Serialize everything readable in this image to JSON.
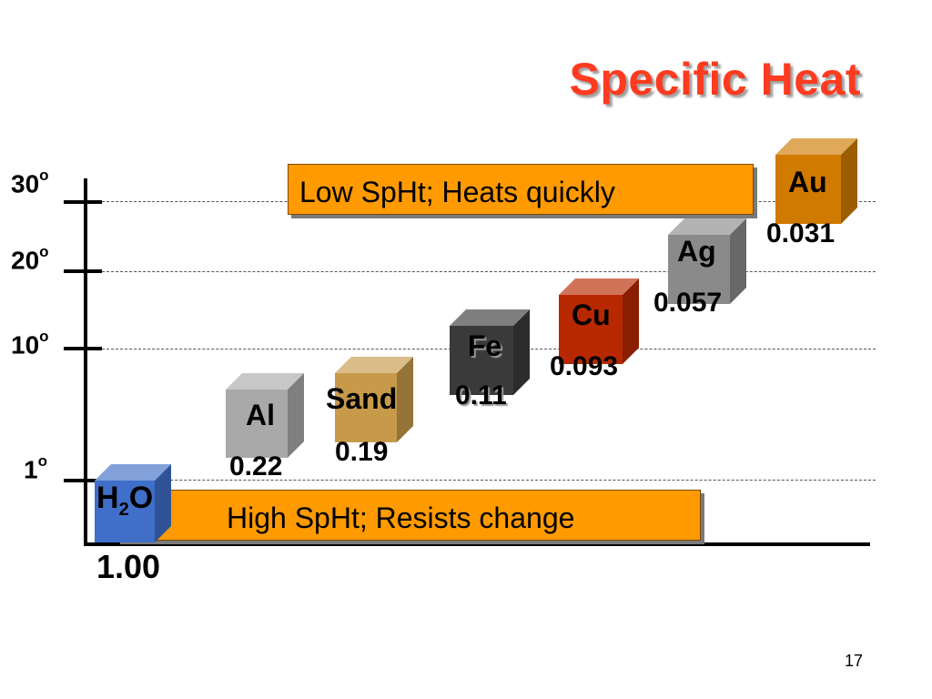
{
  "slide": {
    "title": "Specific Heat",
    "page_number": "17"
  },
  "axis": {
    "temp_labels": [
      {
        "value": "30",
        "unit": "o"
      },
      {
        "value": "20",
        "unit": "o"
      },
      {
        "value": "10",
        "unit": "o"
      },
      {
        "value": "1",
        "unit": "o"
      }
    ]
  },
  "banners": {
    "low": "Low SpHt; Heats quickly",
    "high": "High SpHt; Resists change"
  },
  "materials": [
    {
      "name": "H",
      "subscript": "2",
      "suffix": "O",
      "value": "1.00",
      "color": "#3f6fc8"
    },
    {
      "name": "Al",
      "value": "0.22",
      "color": "#a9a9a9"
    },
    {
      "name": "Sand",
      "value": "0.19",
      "color": "#c79a4a"
    },
    {
      "name": "Fe",
      "value": "0.11",
      "color": "#3a3a3a"
    },
    {
      "name": "Cu",
      "value": "0.093",
      "color": "#b82800"
    },
    {
      "name": "Ag",
      "value": "0.057",
      "color": "#8a8a8a"
    },
    {
      "name": "Au",
      "value": "0.031",
      "color": "#d07a00"
    }
  ],
  "colors": {
    "title": "#ff3b1f",
    "banner": "#ff9a00"
  }
}
